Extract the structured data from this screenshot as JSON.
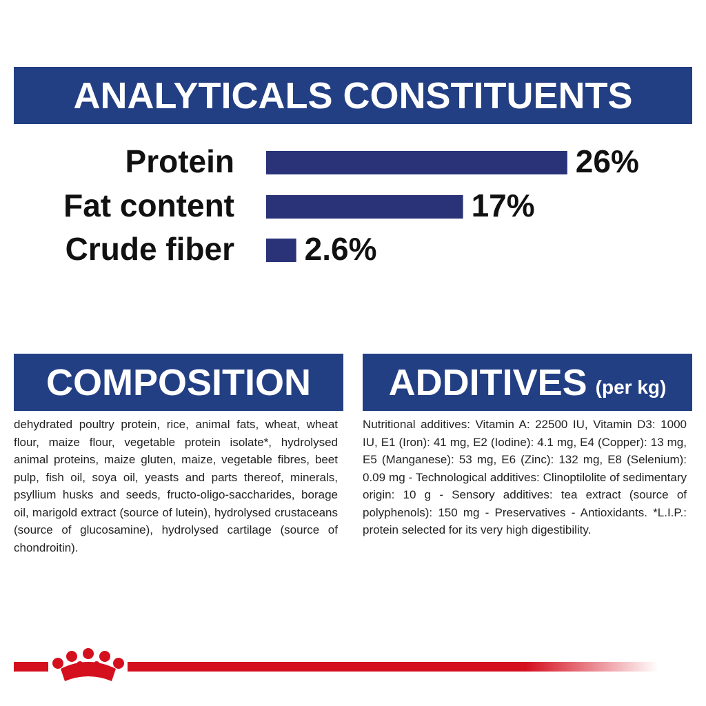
{
  "header": {
    "title": "ANALYTICALS CONSTITUENTS"
  },
  "chart_data": {
    "type": "bar",
    "orientation": "horizontal",
    "categories": [
      "Protein",
      "Fat content",
      "Crude fiber"
    ],
    "values": [
      26,
      17,
      2.6
    ],
    "value_labels": [
      "26%",
      "17%",
      "2.6%"
    ],
    "color": "#2a3378"
  },
  "composition": {
    "title": "COMPOSITION",
    "text": "dehydrated poultry protein, rice, animal fats, wheat, wheat flour, maize flour, vegetable protein isolate*, hydrolysed animal proteins, maize gluten, maize, vegetable fibres, beet pulp, fish oil, soya oil, yeasts and parts thereof, minerals, psyllium husks and seeds, fructo-oligo-saccharides, borage oil, marigold extract (source of lutein), hydrolysed crustaceans (source of glucosamine), hydrolysed cartilage (source of chondroitin)."
  },
  "additives": {
    "title": "ADDITIVES",
    "subtitle": "(per kg)",
    "text": "Nutritional additives: Vitamin A: 22500 IU, Vitamin D3: 1000 IU, E1 (Iron): 41 mg, E2 (Iodine): 4.1 mg, E4 (Copper): 13 mg, E5 (Manganese): 53 mg, E6 (Zinc): 132 mg, E8 (Selenium): 0.09 mg - Technological additives: Clinoptilolite of sedimentary origin: 10 g - Sensory additives: tea extract (source of polyphenols): 150 mg - Preservatives - Antioxidants. *L.I.P.: protein selected for its very high digestibility."
  }
}
